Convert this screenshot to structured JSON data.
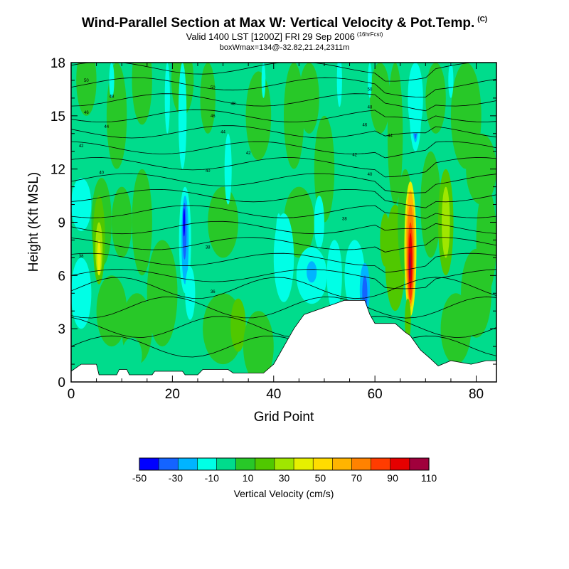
{
  "header": {
    "title": "Wind-Parallel Section at Max W: Vertical Velocity & Pot.Temp.",
    "title_units": "(C)",
    "valid_line": "Valid 1400 LST [1200Z] FRI 29 Sep 2006",
    "forecast_hour": "(16hrFcst)",
    "box_info": "boxWmax=134@-32.82,21.24,2311m"
  },
  "chart_data": {
    "type": "heatmap",
    "xlabel": "Grid Point",
    "ylabel": "Height (Kft MSL)",
    "xlim": [
      0,
      84
    ],
    "ylim": [
      0,
      18
    ],
    "xticks": [
      0,
      20,
      40,
      60,
      80
    ],
    "yticks": [
      0,
      3,
      6,
      9,
      12,
      15,
      18
    ],
    "fill_variable": "Vertical Velocity (cm/s)",
    "colorbar": {
      "title": "Vertical Velocity (cm/s)",
      "tick_labels": [
        "-50",
        "-30",
        "-10",
        "10",
        "30",
        "50",
        "70",
        "90",
        "110"
      ],
      "colors": [
        "#0000ff",
        "#1464ff",
        "#00b4ff",
        "#00ffe6",
        "#00dc8c",
        "#28c828",
        "#50c800",
        "#a0e600",
        "#e6f000",
        "#ffdc00",
        "#ffb400",
        "#ff8200",
        "#ff3c00",
        "#e60000",
        "#a0003c"
      ]
    },
    "terrain_kft": [
      [
        0,
        0.6
      ],
      [
        2,
        1.0
      ],
      [
        5,
        1.0
      ],
      [
        5.5,
        0.4
      ],
      [
        9,
        0.4
      ],
      [
        9.5,
        0.7
      ],
      [
        11,
        0.7
      ],
      [
        11.5,
        0.4
      ],
      [
        16,
        0.4
      ],
      [
        16.5,
        0.6
      ],
      [
        22,
        0.6
      ],
      [
        22.5,
        0.4
      ],
      [
        25,
        0.4
      ],
      [
        26,
        0.7
      ],
      [
        31,
        0.7
      ],
      [
        32,
        0.5
      ],
      [
        38,
        0.5
      ],
      [
        40,
        1.0
      ],
      [
        44,
        3.0
      ],
      [
        46,
        3.8
      ],
      [
        48,
        4.0
      ],
      [
        50,
        4.2
      ],
      [
        52,
        4.4
      ],
      [
        54,
        4.6
      ],
      [
        58,
        4.6
      ],
      [
        59,
        3.8
      ],
      [
        60,
        3.3
      ],
      [
        64,
        3.3
      ],
      [
        66,
        2.8
      ],
      [
        67,
        2.6
      ],
      [
        69,
        1.8
      ],
      [
        71,
        1.3
      ],
      [
        72.5,
        0.9
      ],
      [
        75,
        1.2
      ],
      [
        79,
        1.0
      ],
      [
        82,
        1.2
      ],
      [
        84,
        1.2
      ]
    ],
    "vertical_velocity_features": [
      {
        "x": 5.5,
        "y": 7.5,
        "value": 30
      },
      {
        "x": 22.5,
        "y": 8.0,
        "value": -50
      },
      {
        "x": 33,
        "y": 3.5,
        "value": 30
      },
      {
        "x": 48,
        "y": 6.0,
        "value": -10
      },
      {
        "x": 58,
        "y": 5.0,
        "value": -40
      },
      {
        "x": 67,
        "y": 7.5,
        "value": 110
      },
      {
        "x": 74,
        "y": 9.0,
        "value": 30
      },
      {
        "x": 68,
        "y": 15.0,
        "value": -40
      }
    ],
    "isentrope_labels": [
      {
        "x": 3,
        "y": 17.0,
        "text": "50"
      },
      {
        "x": 8,
        "y": 16.1,
        "text": "48"
      },
      {
        "x": 3,
        "y": 15.2,
        "text": "46"
      },
      {
        "x": 7,
        "y": 14.4,
        "text": "44"
      },
      {
        "x": 2,
        "y": 13.3,
        "text": "42"
      },
      {
        "x": 6,
        "y": 11.8,
        "text": "40"
      },
      {
        "x": 2,
        "y": 7.1,
        "text": "38"
      },
      {
        "x": 28,
        "y": 16.6,
        "text": "50"
      },
      {
        "x": 32,
        "y": 15.7,
        "text": "48"
      },
      {
        "x": 28,
        "y": 15.0,
        "text": "46"
      },
      {
        "x": 30,
        "y": 14.1,
        "text": "44"
      },
      {
        "x": 35,
        "y": 12.9,
        "text": "42"
      },
      {
        "x": 27,
        "y": 11.9,
        "text": "40"
      },
      {
        "x": 27,
        "y": 7.6,
        "text": "38"
      },
      {
        "x": 28,
        "y": 5.1,
        "text": "36"
      },
      {
        "x": 59,
        "y": 16.5,
        "text": "50"
      },
      {
        "x": 59,
        "y": 15.5,
        "text": "48"
      },
      {
        "x": 58,
        "y": 14.5,
        "text": "46"
      },
      {
        "x": 63,
        "y": 13.9,
        "text": "44"
      },
      {
        "x": 56,
        "y": 12.8,
        "text": "42"
      },
      {
        "x": 59,
        "y": 11.7,
        "text": "40"
      },
      {
        "x": 54,
        "y": 9.2,
        "text": "38"
      }
    ]
  }
}
